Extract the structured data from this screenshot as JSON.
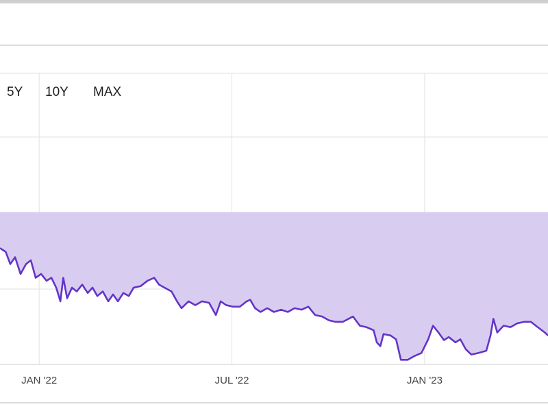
{
  "range_buttons": [
    "5Y",
    "10Y",
    "MAX"
  ],
  "chart_data": {
    "type": "area",
    "color": "#6434c8",
    "fill_color": "#d8cdf0",
    "baseline": 2,
    "xlim": [
      -1.22,
      15.84
    ],
    "ylim": [
      0,
      3.83
    ],
    "xticks": [
      {
        "value": 0,
        "label": "JAN '22"
      },
      {
        "value": 6,
        "label": "JUL '22"
      },
      {
        "value": 12,
        "label": "JAN '23"
      }
    ],
    "x": [
      -1.22,
      -1.04,
      -0.9,
      -0.75,
      -0.58,
      -0.41,
      -0.26,
      -0.11,
      0.06,
      0.23,
      0.38,
      0.53,
      0.66,
      0.75,
      0.87,
      1.02,
      1.17,
      1.34,
      1.51,
      1.66,
      1.81,
      1.98,
      2.15,
      2.3,
      2.45,
      2.62,
      2.79,
      2.94,
      3.16,
      3.37,
      3.58,
      3.73,
      3.9,
      4.12,
      4.29,
      4.43,
      4.65,
      4.86,
      5.07,
      5.29,
      5.5,
      5.65,
      5.82,
      6.03,
      6.25,
      6.46,
      6.57,
      6.72,
      6.89,
      7.1,
      7.31,
      7.53,
      7.74,
      7.95,
      8.17,
      8.38,
      8.59,
      8.81,
      9.02,
      9.23,
      9.45,
      9.77,
      9.98,
      10.19,
      10.41,
      10.51,
      10.62,
      10.72,
      10.94,
      11.11,
      11.26,
      11.47,
      11.68,
      11.9,
      12.11,
      12.26,
      12.43,
      12.6,
      12.75,
      12.96,
      13.11,
      13.28,
      13.45,
      13.67,
      13.92,
      14.05,
      14.14,
      14.26,
      14.46,
      14.67,
      14.88,
      15.1,
      15.31,
      15.52,
      15.74,
      15.84
    ],
    "values": [
      1.53,
      1.48,
      1.32,
      1.41,
      1.19,
      1.32,
      1.37,
      1.14,
      1.19,
      1.1,
      1.14,
      1.01,
      0.83,
      1.14,
      0.87,
      1.01,
      0.96,
      1.05,
      0.94,
      1.01,
      0.9,
      0.96,
      0.83,
      0.92,
      0.83,
      0.94,
      0.9,
      1.01,
      1.03,
      1.1,
      1.14,
      1.05,
      1.01,
      0.96,
      0.83,
      0.74,
      0.83,
      0.78,
      0.83,
      0.81,
      0.65,
      0.83,
      0.78,
      0.76,
      0.76,
      0.83,
      0.85,
      0.74,
      0.69,
      0.74,
      0.69,
      0.72,
      0.69,
      0.74,
      0.72,
      0.76,
      0.65,
      0.63,
      0.58,
      0.56,
      0.56,
      0.63,
      0.51,
      0.49,
      0.45,
      0.29,
      0.24,
      0.4,
      0.38,
      0.33,
      0.06,
      0.06,
      0.11,
      0.15,
      0.33,
      0.51,
      0.42,
      0.32,
      0.36,
      0.29,
      0.33,
      0.2,
      0.13,
      0.15,
      0.18,
      0.38,
      0.6,
      0.42,
      0.51,
      0.49,
      0.54,
      0.56,
      0.56,
      0.49,
      0.42,
      0.38
    ]
  }
}
